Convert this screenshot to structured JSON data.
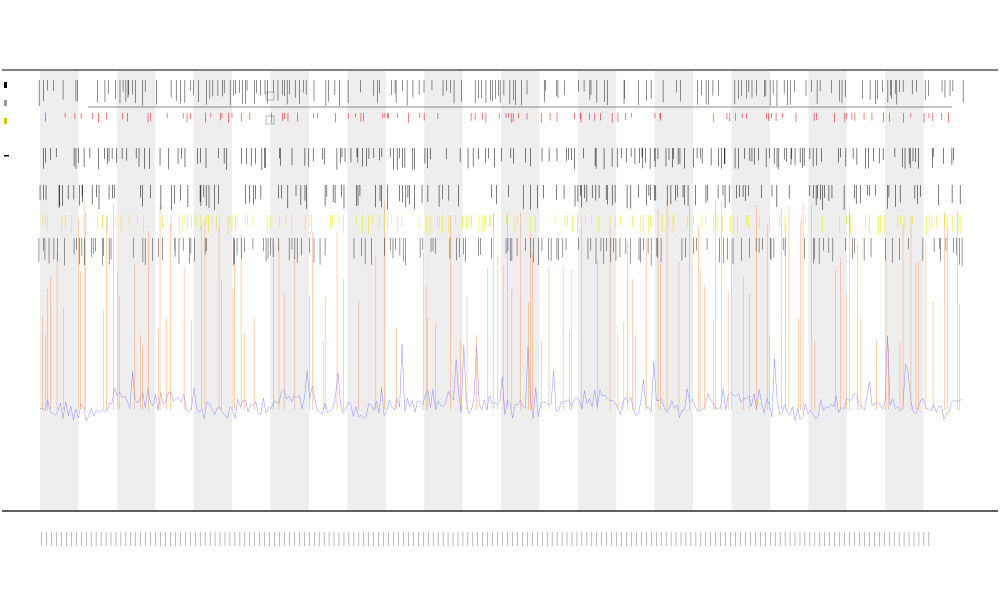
{
  "chart_data": {
    "type": "line",
    "title": "",
    "subtitle_lines": [
      "",
      ""
    ],
    "xlabel": "",
    "ylabel": "",
    "legend_entries": [
      "",
      "",
      "",
      ""
    ],
    "legend_placement": "left",
    "grid": false,
    "n_points": 360,
    "ylim": [
      0,
      10
    ],
    "band_count": 12,
    "series": [
      {
        "name": "",
        "color": "#6b6bff",
        "style": "line"
      },
      {
        "name": "",
        "color": "#ff7f2a",
        "style": "spike"
      },
      {
        "name": "",
        "color": "#e6e600",
        "style": "tick"
      },
      {
        "name": "",
        "color": "#000000",
        "style": "tick"
      }
    ],
    "colors": {
      "band": "#eeeeee",
      "axis": "#000000",
      "ref_line": "#555555",
      "red_ticks": "#e60000"
    }
  }
}
